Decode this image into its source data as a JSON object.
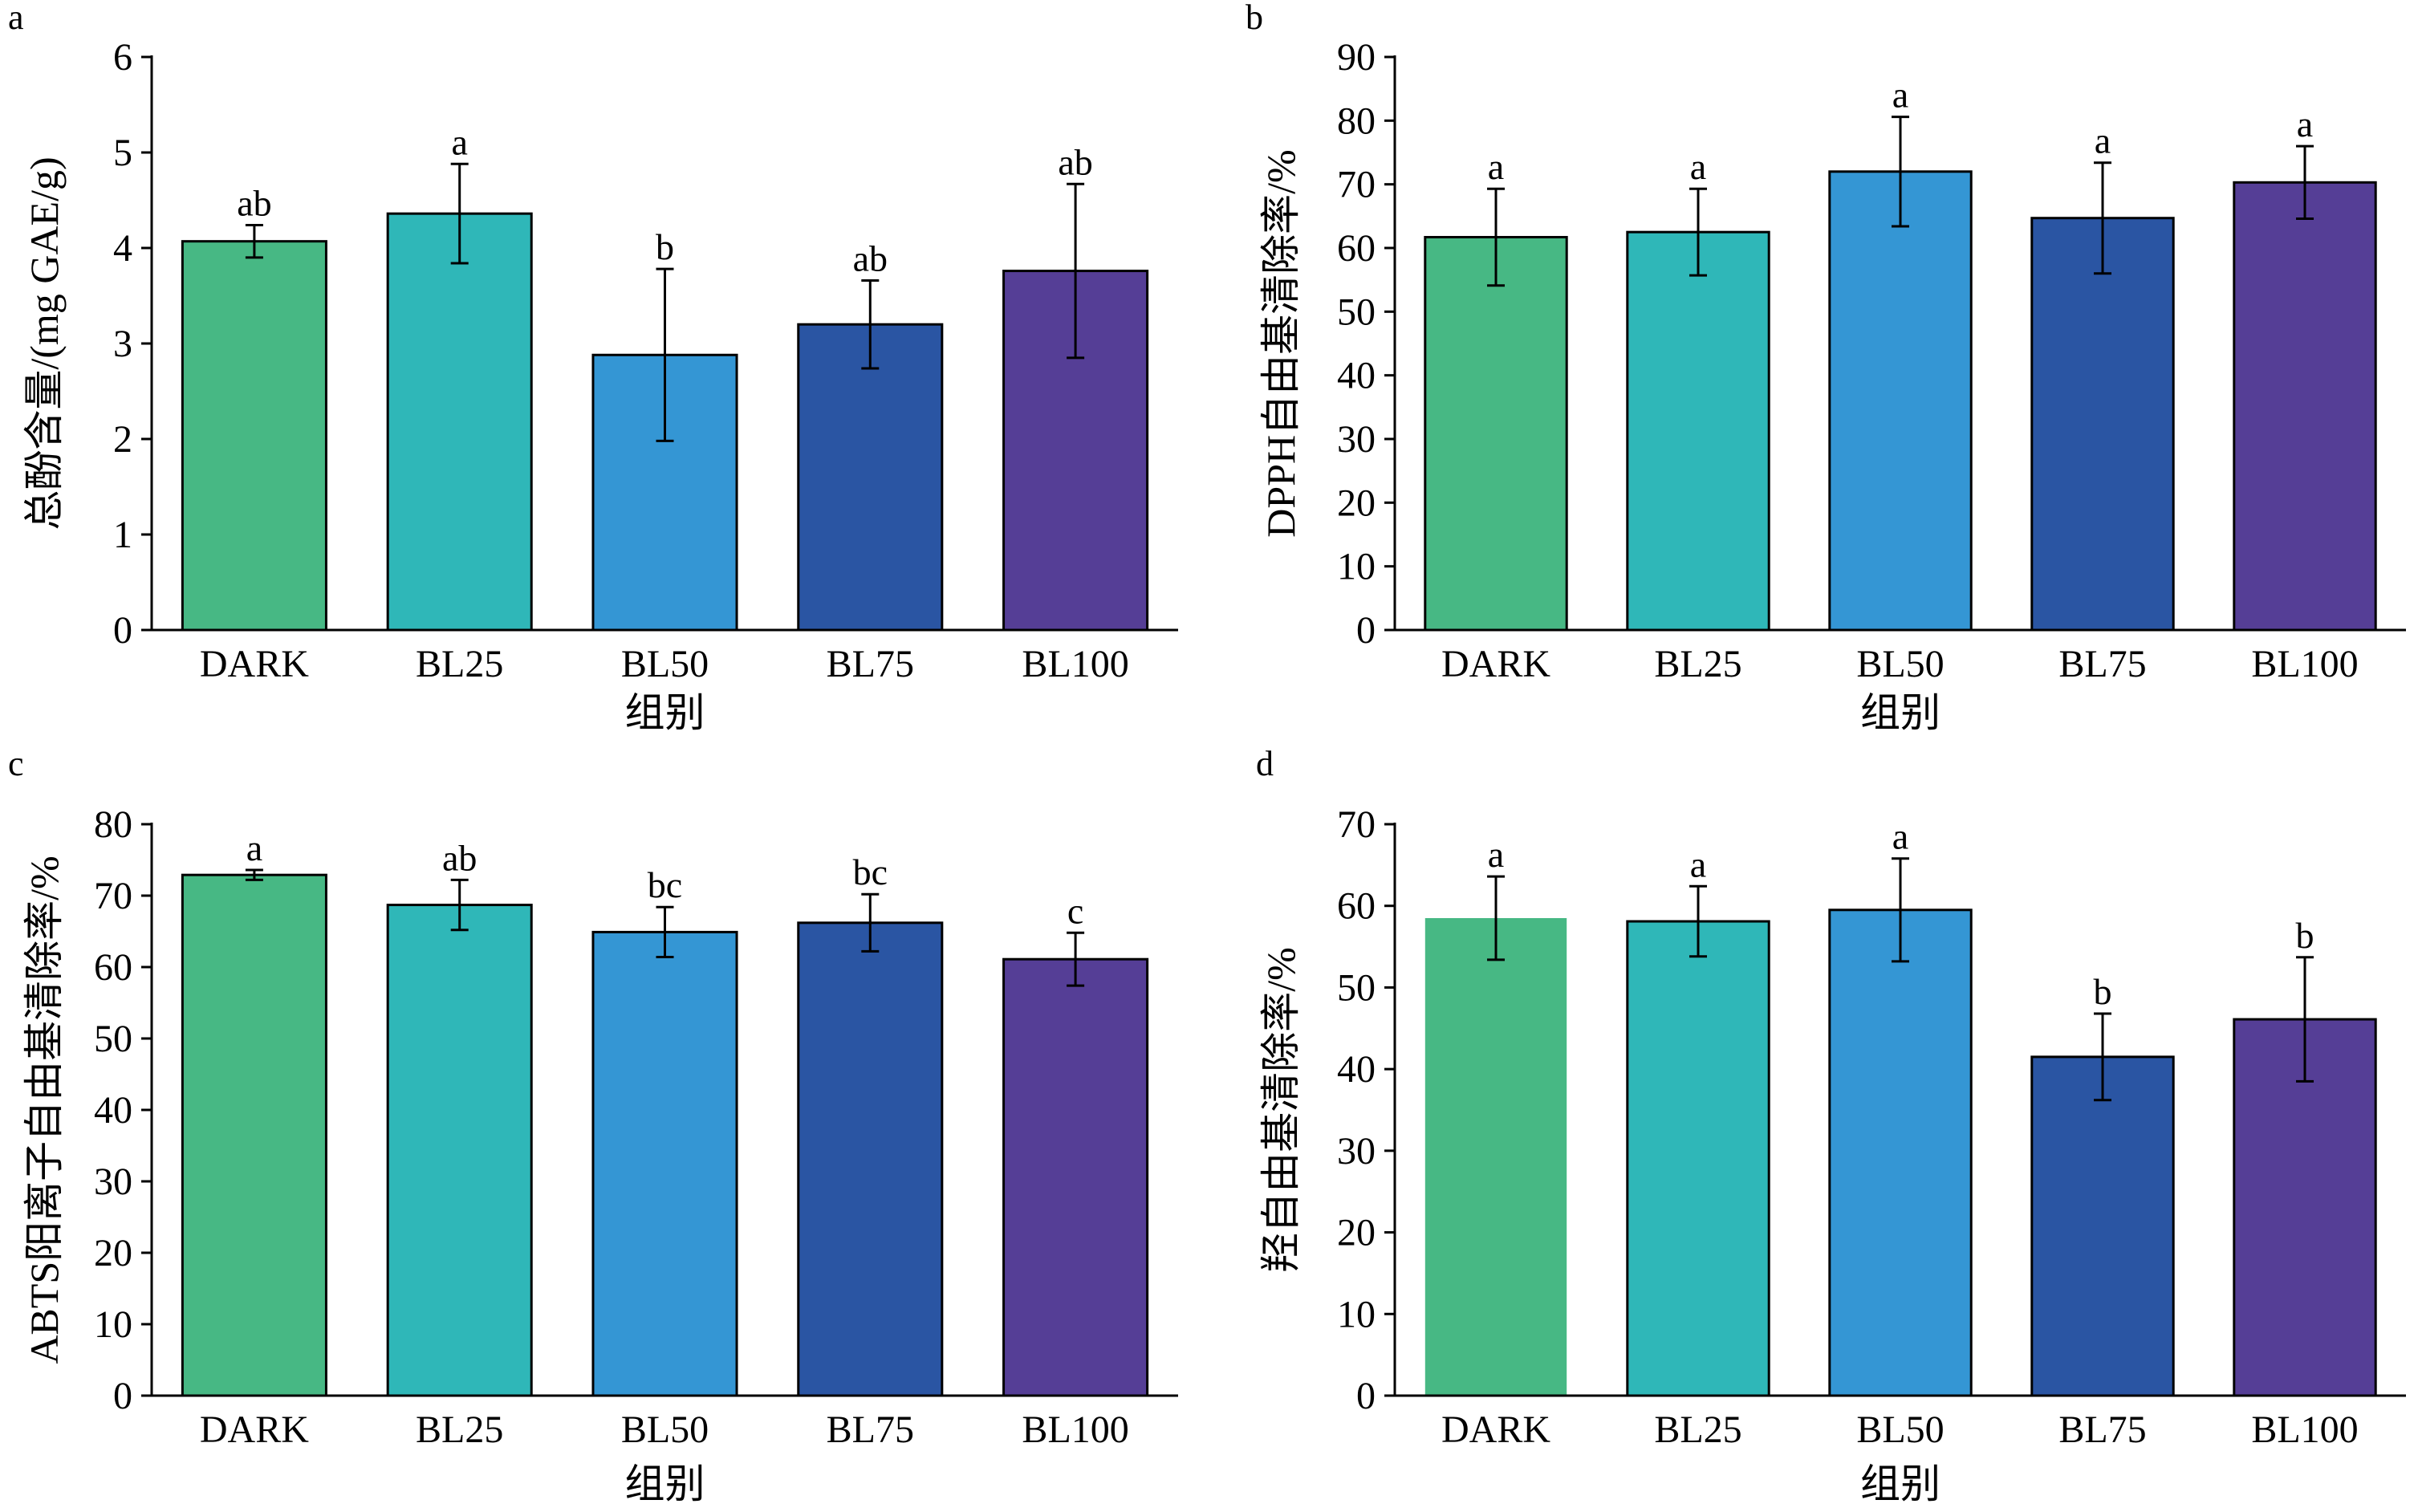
{
  "chart_data": [
    {
      "type": "bar",
      "panel": "a",
      "categories": [
        "DARK",
        "BL25",
        "BL50",
        "BL75",
        "BL100"
      ],
      "values": [
        4.07,
        4.36,
        2.88,
        3.2,
        3.76
      ],
      "errors": [
        0.17,
        0.52,
        0.9,
        0.46,
        0.91
      ],
      "letters": [
        "ab",
        "a",
        "b",
        "ab",
        "ab"
      ],
      "xlabel": "组别",
      "ylabel": "总酚含量/(mg GAE/g)",
      "ylim": [
        0,
        6
      ],
      "yticks": [
        0,
        1,
        2,
        3,
        4,
        5,
        6
      ],
      "colors": [
        "#47b884",
        "#2fb7b8",
        "#3496d4",
        "#2a55a3",
        "#553e96"
      ]
    },
    {
      "type": "bar",
      "panel": "b",
      "categories": [
        "DARK",
        "BL25",
        "BL50",
        "BL75",
        "BL100"
      ],
      "values": [
        61.7,
        62.5,
        72.0,
        64.7,
        70.3
      ],
      "errors": [
        7.6,
        6.8,
        8.6,
        8.7,
        5.7
      ],
      "letters": [
        "a",
        "a",
        "a",
        "a",
        "a"
      ],
      "xlabel": "组别",
      "ylabel": "DPPH自由基清除率/%",
      "ylim": [
        0,
        90
      ],
      "yticks": [
        0,
        10,
        20,
        30,
        40,
        50,
        60,
        70,
        80,
        90
      ],
      "colors": [
        "#47b884",
        "#2fb7b8",
        "#3496d4",
        "#2a55a3",
        "#553e96"
      ]
    },
    {
      "type": "bar",
      "panel": "c",
      "categories": [
        "DARK",
        "BL25",
        "BL50",
        "BL75",
        "BL100"
      ],
      "values": [
        72.9,
        68.7,
        64.9,
        66.2,
        61.1
      ],
      "errors": [
        0.7,
        3.5,
        3.5,
        4.0,
        3.7
      ],
      "letters": [
        "a",
        "ab",
        "bc",
        "bc",
        "c"
      ],
      "xlabel": "组别",
      "ylabel": "ABTS阳离子自由基清除率/%",
      "ylim": [
        0,
        80
      ],
      "yticks": [
        0,
        10,
        20,
        30,
        40,
        50,
        60,
        70,
        80
      ],
      "colors": [
        "#47b884",
        "#2fb7b8",
        "#3496d4",
        "#2a55a3",
        "#553e96"
      ]
    },
    {
      "type": "bar",
      "panel": "d",
      "categories": [
        "DARK",
        "BL25",
        "BL50",
        "BL75",
        "BL100"
      ],
      "values": [
        58.5,
        58.1,
        59.5,
        41.5,
        46.1
      ],
      "errors": [
        5.1,
        4.3,
        6.3,
        5.3,
        7.6
      ],
      "letters": [
        "a",
        "a",
        "a",
        "b",
        "b"
      ],
      "xlabel": "组别",
      "ylabel": "羟自由基清除率/%",
      "ylim": [
        0,
        70
      ],
      "yticks": [
        0,
        10,
        20,
        30,
        40,
        50,
        60,
        70
      ],
      "colors": [
        "#47b884",
        "#2fb7b8",
        "#3496d4",
        "#2a55a3",
        "#553e96"
      ]
    }
  ]
}
